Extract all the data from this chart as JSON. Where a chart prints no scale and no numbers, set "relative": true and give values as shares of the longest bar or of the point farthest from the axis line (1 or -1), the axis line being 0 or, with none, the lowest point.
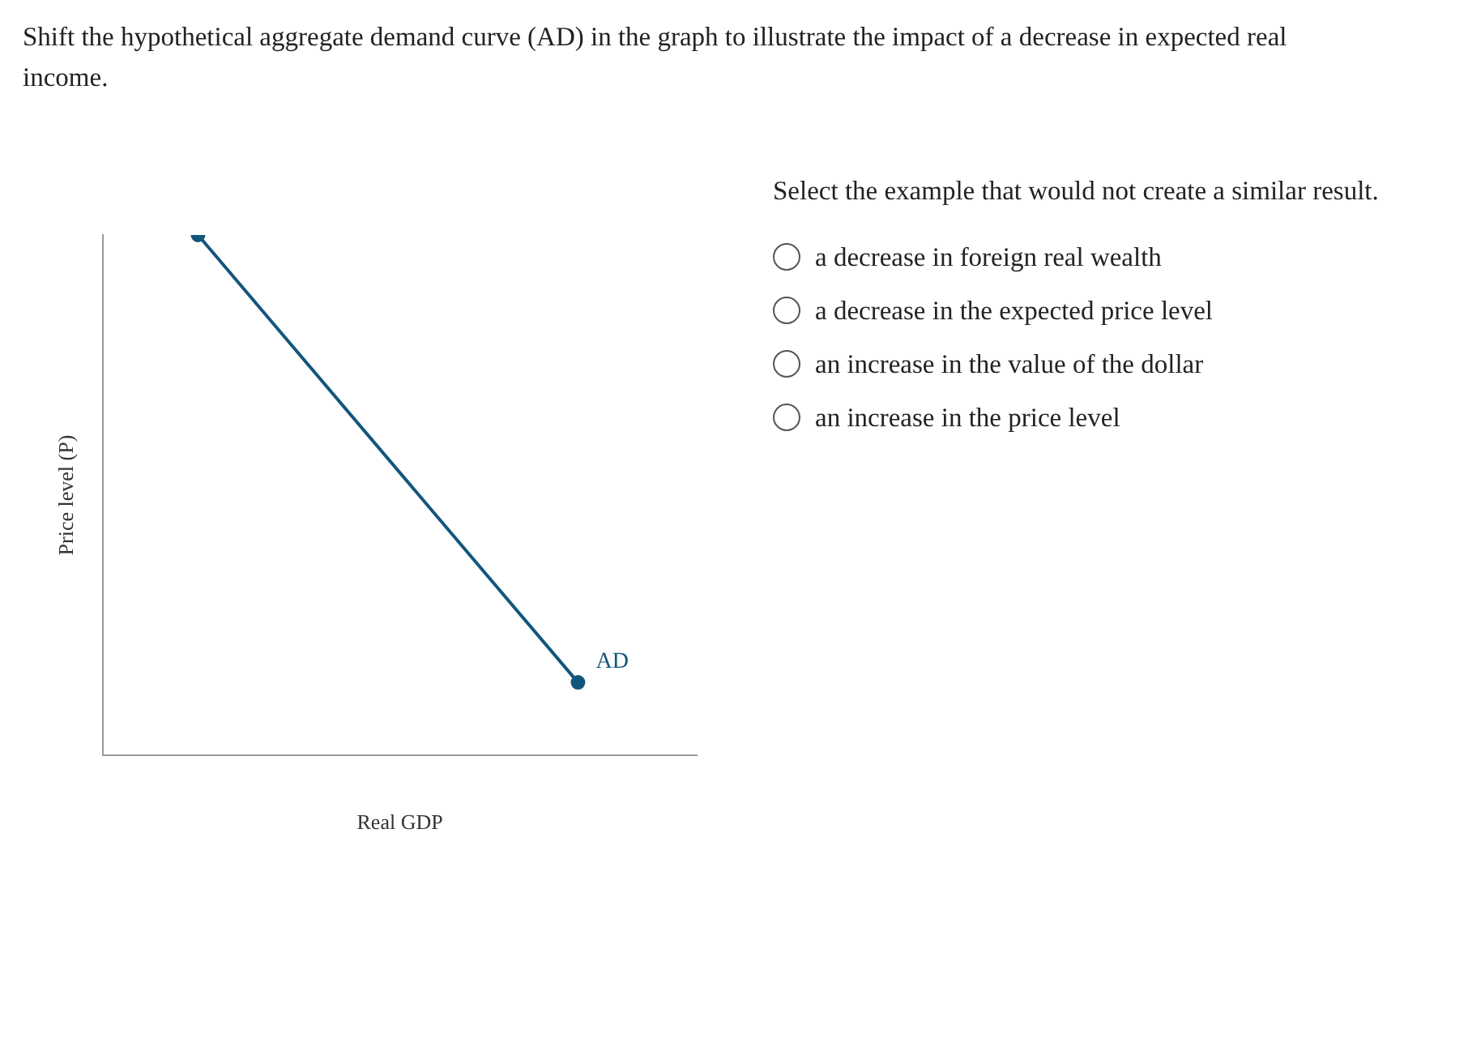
{
  "chart_data": {
    "type": "line",
    "title": "Shift the hypothetical aggregate demand curve (AD) in the graph to illustrate the impact of a decrease in expected real income.",
    "subtitle": "Select the example that would not create a similar result.",
    "xlabel": "Real GDP",
    "ylabel": "Price level (P)",
    "relative": true,
    "marker": "circle",
    "legend": false,
    "grid": false,
    "categories": [
      null,
      null,
      null,
      null,
      null,
      null,
      null,
      null,
      null,
      null,
      null,
      null,
      null,
      null,
      null,
      null,
      null,
      null,
      null,
      null,
      null,
      null,
      null,
      null,
      null,
      null
    ],
    "series": [
      {
        "name": "AD",
        "color": "#13557c",
        "values": [
          null,
          null,
          null,
          null,
          1,
          null,
          null,
          null,
          null,
          null,
          null,
          null,
          null,
          null,
          null,
          null,
          null,
          null,
          null,
          null,
          0.14,
          null,
          null,
          null,
          null,
          null
        ]
      }
    ],
    "annotations": [
      "a decrease in foreign real wealth",
      "a decrease in the expected price level",
      "an increase in the value of the dollar",
      "an increase in the price level"
    ]
  }
}
